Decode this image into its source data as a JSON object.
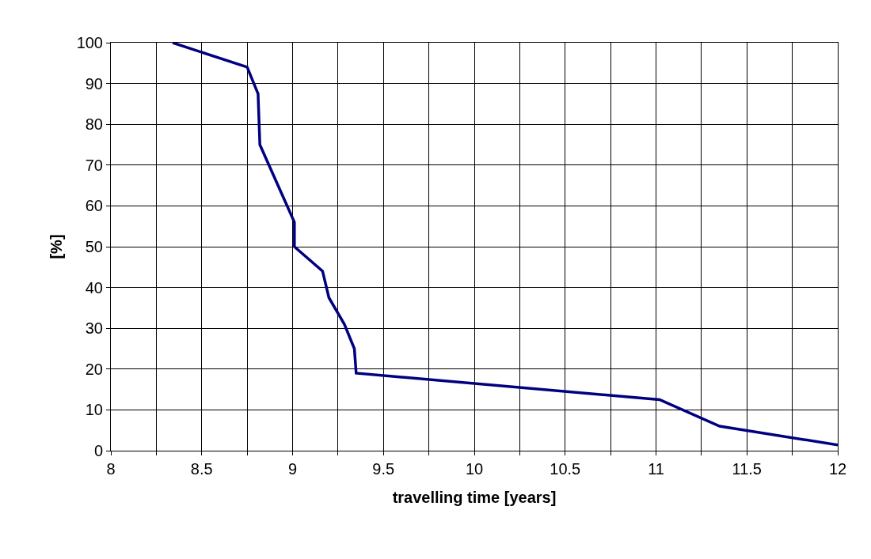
{
  "chart_data": {
    "type": "line",
    "xlabel": "travelling time [years]",
    "ylabel": "[%]",
    "x": [
      8.34,
      8.75,
      8.81,
      8.82,
      8.945,
      9.01,
      9.01,
      9.165,
      9.2,
      9.285,
      9.34,
      9.35,
      11.02,
      11.35,
      12
    ],
    "series": [
      {
        "color": "#000080",
        "values": [
          100,
          94,
          87.5,
          75,
          62.5,
          56,
          50,
          44,
          37.5,
          31,
          25,
          19,
          12.5,
          6,
          1.4
        ]
      }
    ],
    "xlim": [
      8,
      12
    ],
    "xticks": [
      8,
      {
        "value": 8.25,
        "label": null
      },
      8.5,
      {
        "value": 8.75,
        "label": null
      },
      9,
      {
        "value": 9.25,
        "label": null
      },
      9.5,
      {
        "value": 9.75,
        "label": null
      },
      10,
      {
        "value": 10.25,
        "label": null
      },
      10.5,
      {
        "value": 10.75,
        "label": null
      },
      11,
      {
        "value": 11.25,
        "label": null
      },
      11.5,
      {
        "value": 11.75,
        "label": null
      },
      12
    ],
    "ylim": [
      0,
      100
    ],
    "yticks": [
      0,
      10,
      20,
      30,
      40,
      50,
      60,
      70,
      80,
      90,
      100
    ],
    "grid": true,
    "marker": "none",
    "line_style": "solid"
  }
}
